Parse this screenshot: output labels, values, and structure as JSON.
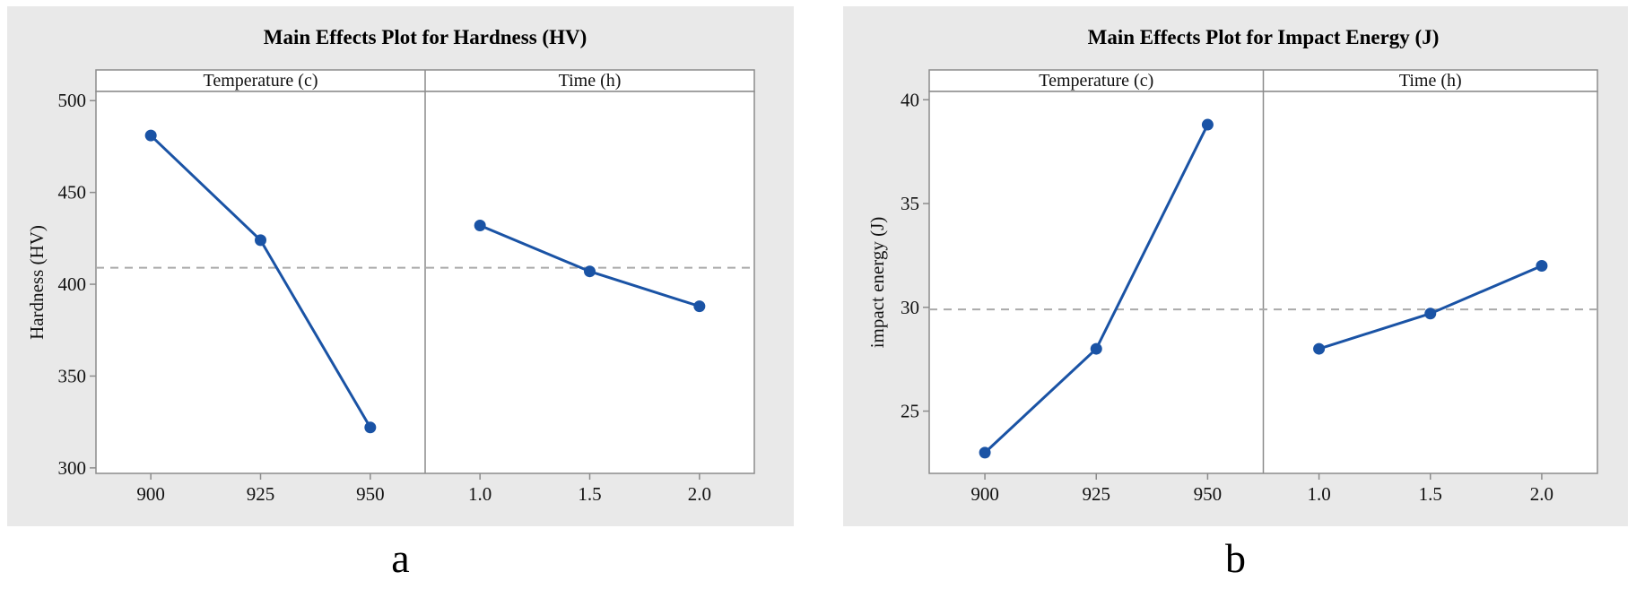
{
  "colors": {
    "accent_blue": "#1a53a5",
    "mean_line_gray": "#aaaaaa",
    "frame_gray": "#8c8c8c",
    "panel_background": "#e9e9e9",
    "plot_background": "#ffffff",
    "text_color": "#111111"
  },
  "chart_data": [
    {
      "type": "line",
      "title": "Main Effects Plot for Hardness (HV)",
      "subfigure_label": "a",
      "ylabel": "Hardness (HV)",
      "xlabel": "",
      "ylim": [
        297,
        505
      ],
      "yticks": [
        300,
        350,
        400,
        450,
        500
      ],
      "mean_line": 409,
      "grid": false,
      "legend_position": "none",
      "marker": "circle",
      "panels": [
        {
          "header": "Temperature (c)",
          "categories": [
            "900",
            "925",
            "950"
          ],
          "values": [
            481,
            424,
            322
          ]
        },
        {
          "header": "Time (h)",
          "categories": [
            "1.0",
            "1.5",
            "2.0"
          ],
          "values": [
            432,
            407,
            388
          ]
        }
      ]
    },
    {
      "type": "line",
      "title": "Main Effects Plot for Impact Energy (J)",
      "subfigure_label": "b",
      "ylabel": "impact energy (J)",
      "xlabel": "",
      "ylim": [
        22,
        40.4
      ],
      "yticks": [
        25,
        30,
        35,
        40
      ],
      "mean_line": 29.9,
      "grid": false,
      "legend_position": "none",
      "marker": "circle",
      "panels": [
        {
          "header": "Temperature (c)",
          "categories": [
            "900",
            "925",
            "950"
          ],
          "values": [
            23,
            28,
            38.8
          ]
        },
        {
          "header": "Time (h)",
          "categories": [
            "1.0",
            "1.5",
            "2.0"
          ],
          "values": [
            28,
            29.7,
            32
          ]
        }
      ]
    }
  ]
}
